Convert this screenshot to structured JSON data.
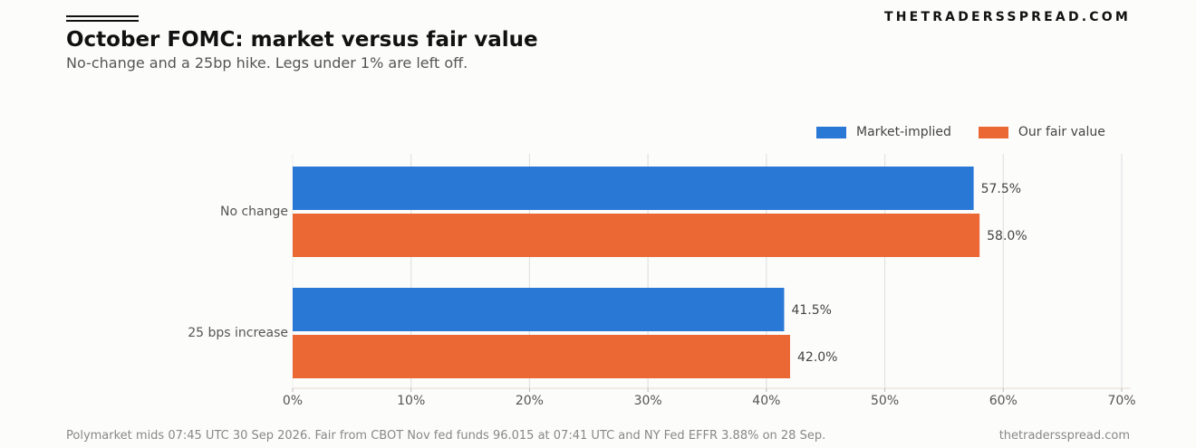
{
  "header": {
    "brand": "THETRADERSSPREAD.COM",
    "title": "October FOMC: market versus fair value",
    "subtitle": "No-change and a 25bp hike. Legs under 1% are left off."
  },
  "footer": {
    "source_note": "Polymarket mids 07:45 UTC 30 Sep 2026. Fair from CBOT Nov fed funds 96.015 at 07:41 UTC and NY Fed EFFR 3.88% on 28 Sep.",
    "site": "thetradersspread.com"
  },
  "colors": {
    "market": "#2a78d6",
    "fair": "#eb6834",
    "grid": "#e2e2e2",
    "axis_text": "#555555"
  },
  "chart_data": {
    "type": "bar",
    "orientation": "horizontal",
    "title": "October FOMC: market versus fair value",
    "subtitle": "No-change and a 25bp hike. Legs under 1% are left off.",
    "categories": [
      "No change",
      "25 bps increase"
    ],
    "series": [
      {
        "name": "Market-implied",
        "values": [
          57.5,
          41.5
        ],
        "labels": [
          "57.5%",
          "41.5%"
        ]
      },
      {
        "name": "Our fair value",
        "values": [
          58.0,
          42.0
        ],
        "labels": [
          "58.0%",
          "42.0%"
        ]
      }
    ],
    "xlim": [
      0,
      70
    ],
    "xticks": [
      0,
      10,
      20,
      30,
      40,
      50,
      60,
      70
    ],
    "xtick_labels": [
      "0%",
      "10%",
      "20%",
      "30%",
      "40%",
      "50%",
      "60%",
      "70%"
    ],
    "grid": true,
    "legend_position": "top-right"
  }
}
